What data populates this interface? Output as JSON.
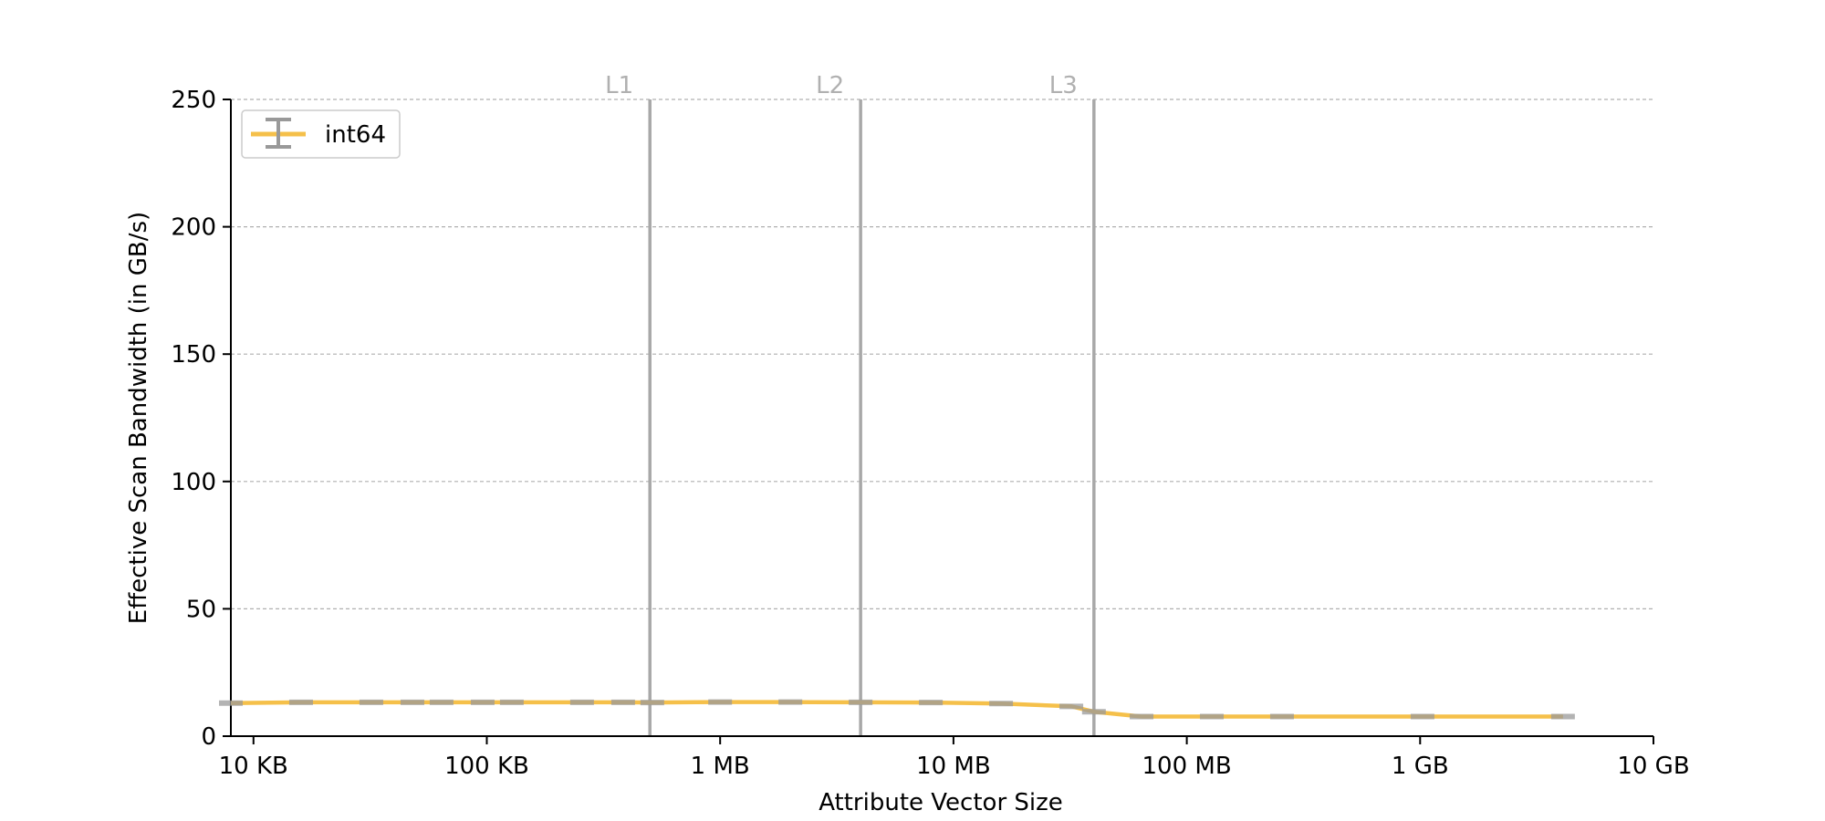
{
  "chart_data": {
    "type": "line",
    "title": "",
    "xlabel": "Attribute Vector Size",
    "ylabel": "Effective Scan Bandwidth (in GB/s)",
    "x_scale": "log",
    "x_unit": "bytes",
    "xlim": [
      8000,
      10000000000
    ],
    "ylim": [
      0,
      250
    ],
    "grid": "horizontal dashed",
    "legend_position": "upper-left",
    "x_ticks": [
      {
        "value": 10000,
        "label": "10 KB"
      },
      {
        "value": 100000,
        "label": "100 KB"
      },
      {
        "value": 1000000,
        "label": "1 MB"
      },
      {
        "value": 10000000,
        "label": "10 MB"
      },
      {
        "value": 100000000,
        "label": "100 MB"
      },
      {
        "value": 1000000000,
        "label": "1 GB"
      },
      {
        "value": 10000000000,
        "label": "10 GB"
      }
    ],
    "y_ticks": [
      0,
      50,
      100,
      150,
      200,
      250
    ],
    "cache_lines": [
      {
        "label": "L1",
        "x": 500000
      },
      {
        "label": "L2",
        "x": 4000000
      },
      {
        "label": "L3",
        "x": 40000000
      }
    ],
    "series": [
      {
        "name": "int64",
        "color": "#f5c04a",
        "error_color": "#999999",
        "x": [
          8000,
          16000,
          32000,
          48000,
          64000,
          96000,
          128000,
          256000,
          384000,
          512000,
          1000000,
          2000000,
          4000000,
          8000000,
          16000000,
          32000000,
          40000000,
          64000000,
          128000000,
          256000000,
          1024000000,
          4096000000
        ],
        "y": [
          13,
          13.3,
          13.3,
          13.3,
          13.3,
          13.3,
          13.3,
          13.3,
          13.3,
          13.2,
          13.4,
          13.4,
          13.3,
          13.2,
          12.8,
          11.7,
          9.6,
          7.7,
          7.7,
          7.7,
          7.7,
          7.7
        ]
      }
    ]
  }
}
